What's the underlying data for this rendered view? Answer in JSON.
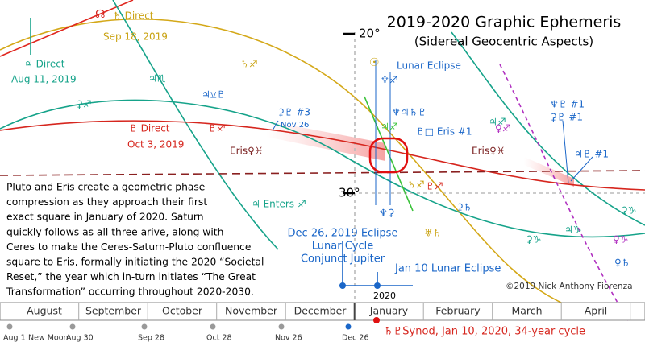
{
  "title": "2019-2020 Graphic Ephemeris",
  "subtitle": "(Sidereal Geocentric Aspects)",
  "axis": {
    "deg20": "20°",
    "deg30": "30°",
    "year": "2020"
  },
  "labels": [
    "☊",
    "♄ Direct",
    "Sep 18, 2019",
    "♃ Direct",
    "Aug 11, 2019",
    "♃♏",
    "♄♐",
    "⚳♐",
    "♃⚺♇",
    "⚳♇ #3",
    "Nov 26",
    "♇ Direct",
    "Oct 3, 2019",
    "♇♐",
    "Eris♀♓",
    "♃ Enters ♐",
    "☉",
    "♆♐",
    "Lunar Eclipse",
    "♆♃♄♇",
    "♃♐",
    "♇□ Eris #1",
    "♄♐",
    "♇♐",
    "♆⚳",
    "⚳♄",
    "♅♄",
    "Eris♀♓",
    "♃♐",
    "♀♐",
    "♆♇ #1",
    "⚳♇ #1",
    "♃♇ #1",
    "⚳♑",
    "⚳♑",
    "♃♑",
    "♀♑",
    "♀♄",
    "Dec 26, 2019 Eclipse",
    "Lunar Cycle",
    "Conjunct Jupiter",
    "Jan 10 Lunar Eclipse"
  ],
  "description": [
    "Pluto and Eris create a geometric phase",
    "compression as they approach their first",
    "exact square in January of 2020. Saturn",
    "quickly follows as all three arive, along with",
    "Ceres to make the Ceres-Saturn-Pluto confluence",
    "square to Eris, formally initiating the 2020 “Societal",
    "Reset,” the year which in-turn initiates “The Great",
    "Transformation” occurring throughout 2020-2030."
  ],
  "months": [
    "August",
    "September",
    "October",
    "November",
    "December",
    "January",
    "February",
    "March",
    "April"
  ],
  "footer": [
    "Aug 1",
    "New Moon",
    "Aug 30",
    "Sep 28",
    "Oct 28",
    "Nov 26",
    "Dec 26"
  ],
  "credit": "©2019 Nick Anthony Fiorenza",
  "synod": "♄♇Synod, Jan 10, 2020, 34-year cycle"
}
